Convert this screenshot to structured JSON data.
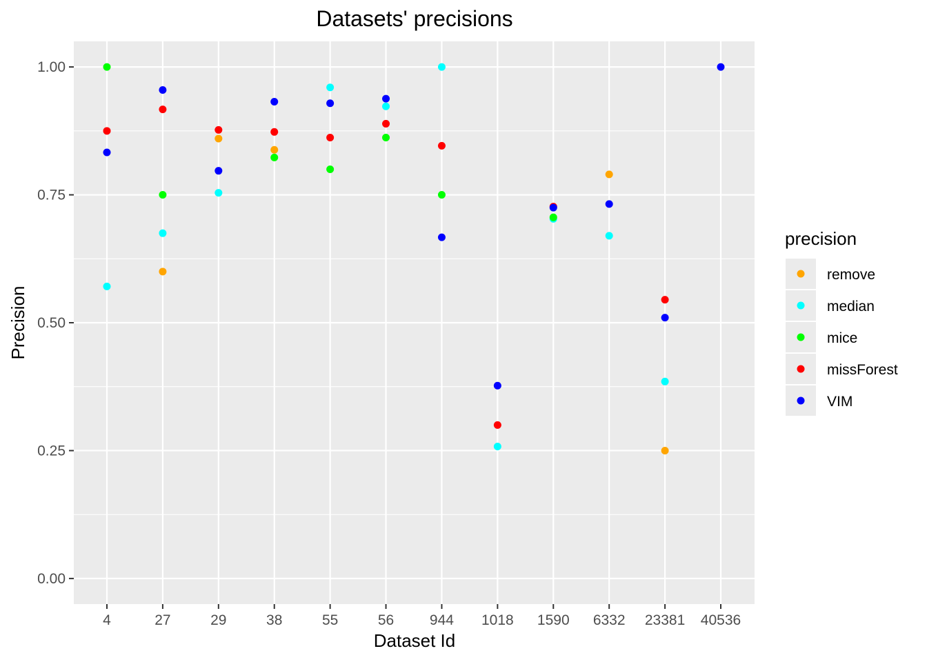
{
  "chart_data": {
    "type": "scatter",
    "title": "Datasets' precisions",
    "xlabel": "Dataset Id",
    "ylabel": "Precision",
    "categories": [
      "4",
      "27",
      "29",
      "38",
      "55",
      "56",
      "944",
      "1018",
      "1590",
      "6332",
      "23381",
      "40536"
    ],
    "ylim": [
      -0.05,
      1.05
    ],
    "yticks": [
      "0.00",
      "0.25",
      "0.50",
      "0.75",
      "1.00"
    ],
    "grid": true,
    "legend": {
      "title": "precision",
      "placement": "right"
    },
    "series": [
      {
        "name": "remove",
        "color": "#FFA500",
        "values": [
          null,
          0.6,
          0.86,
          0.838,
          null,
          null,
          null,
          null,
          null,
          0.79,
          0.25,
          null
        ]
      },
      {
        "name": "median",
        "color": "#00FFFF",
        "values": [
          0.571,
          0.675,
          0.754,
          null,
          0.96,
          0.923,
          1.0,
          0.258,
          0.703,
          0.67,
          0.385,
          null
        ]
      },
      {
        "name": "mice",
        "color": "#00FF00",
        "values": [
          1.0,
          0.75,
          null,
          0.823,
          0.8,
          0.862,
          0.75,
          null,
          0.706,
          null,
          null,
          null
        ]
      },
      {
        "name": "missForest",
        "color": "#FF0000",
        "values": [
          0.875,
          0.917,
          0.877,
          0.873,
          0.862,
          0.889,
          0.846,
          0.3,
          0.727,
          null,
          0.545,
          null
        ]
      },
      {
        "name": "VIM",
        "color": "#0000FF",
        "values": [
          0.833,
          0.955,
          0.797,
          0.932,
          0.929,
          0.938,
          0.667,
          0.377,
          0.725,
          0.732,
          0.51,
          1.0
        ]
      }
    ]
  }
}
